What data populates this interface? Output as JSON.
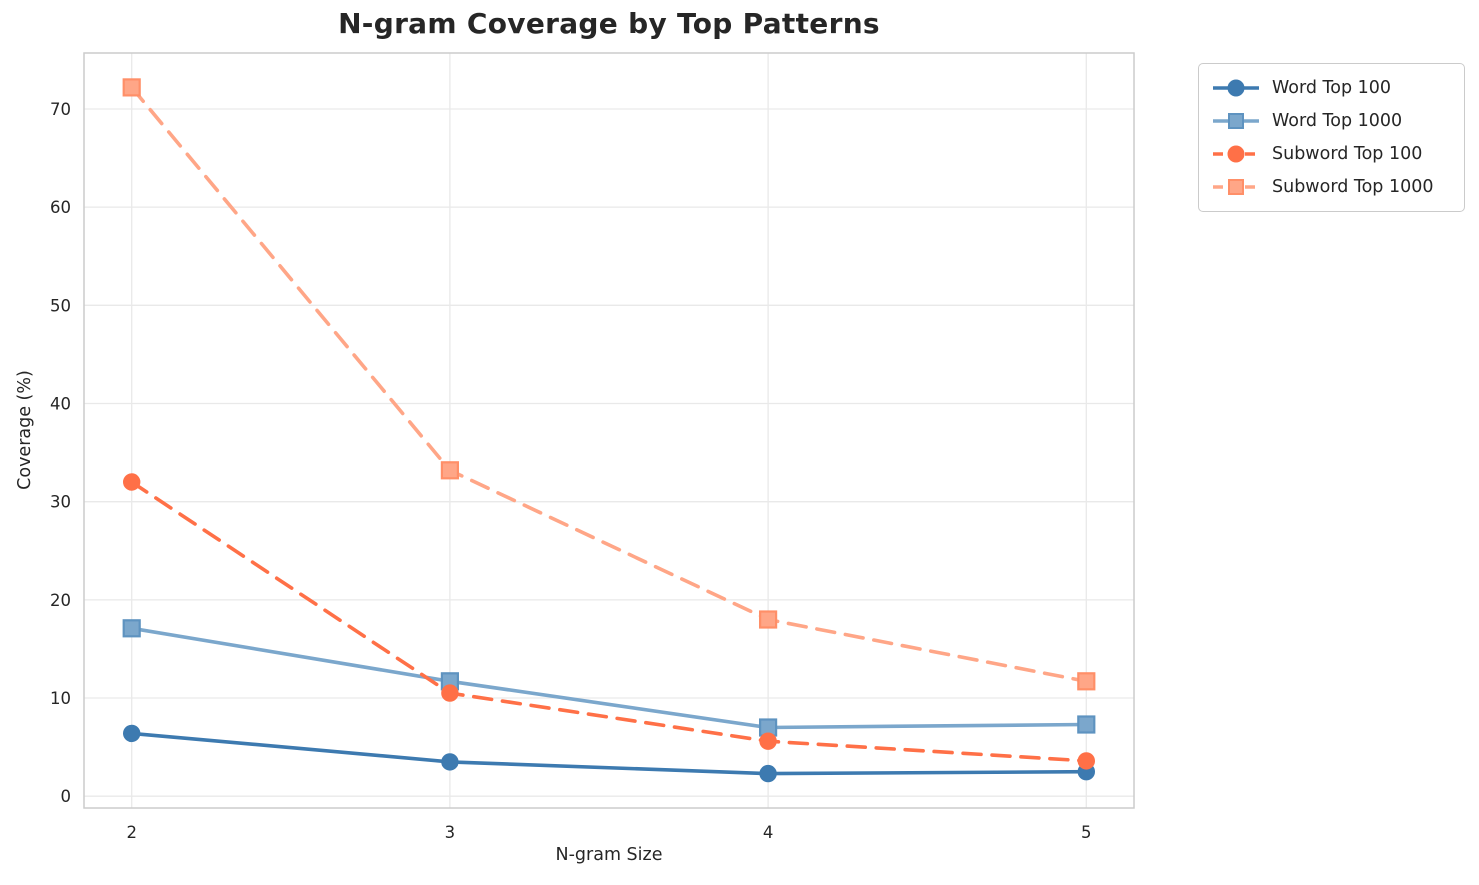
{
  "figure": {
    "title": "N-gram Coverage by Top Patterns"
  },
  "chart_data": {
    "type": "line",
    "title": "N-gram Coverage by Top Patterns",
    "xlabel": "N-gram Size",
    "ylabel": "Coverage (%)",
    "x": [
      2,
      3,
      4,
      5
    ],
    "xticks": [
      2,
      3,
      4,
      5
    ],
    "yticks": [
      0,
      10,
      20,
      30,
      40,
      50,
      60,
      70
    ],
    "xlim": [
      1.85,
      5.15
    ],
    "ylim": [
      -1.2,
      75.7
    ],
    "grid": true,
    "legend_position": "outside-upper-right",
    "colors": {
      "grid": "#e9e9e9",
      "plot_border": "#cccccc",
      "text": "#262626"
    },
    "series": [
      {
        "name": "Word Top 100",
        "values": [
          6.4,
          3.5,
          2.3,
          2.5
        ],
        "color": "#3d7ab0",
        "marker_edge": "#3d7ab0",
        "line_style": "solid",
        "marker": "circle"
      },
      {
        "name": "Word Top 1000",
        "values": [
          17.1,
          11.7,
          7.0,
          7.3
        ],
        "color": "#7ba7cc",
        "marker_edge": "#5e93c0",
        "line_style": "solid",
        "marker": "square"
      },
      {
        "name": "Subword Top 100",
        "values": [
          32.0,
          10.5,
          5.6,
          3.6
        ],
        "color": "#ff7047",
        "marker_edge": "#ff7047",
        "line_style": "dashed",
        "marker": "circle"
      },
      {
        "name": "Subword Top 1000",
        "values": [
          72.2,
          33.2,
          18.0,
          11.7
        ],
        "color": "#ffa687",
        "marker_edge": "#ff8f68",
        "line_style": "dashed",
        "marker": "square"
      }
    ]
  }
}
